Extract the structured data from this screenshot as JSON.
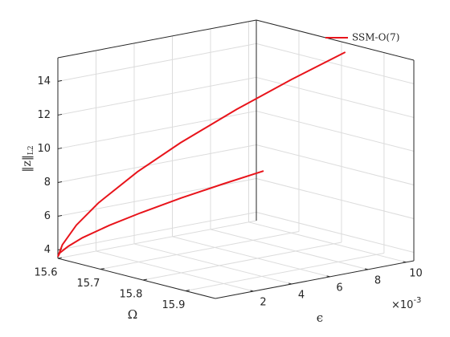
{
  "chart_data": {
    "type": "line3d",
    "xlabel": "Ω",
    "ylabel": "ϵ",
    "zlabel": "‖z‖",
    "zlabel_subscript": "L2",
    "xlim": [
      15.6,
      15.97
    ],
    "ylim": [
      0,
      0.0104
    ],
    "zlim": [
      3.5,
      15.4
    ],
    "xticks": [
      15.6,
      15.7,
      15.8,
      15.9
    ],
    "yticks": [
      {
        "value": 0.002,
        "label": "2"
      },
      {
        "value": 0.004,
        "label": "4"
      },
      {
        "value": 0.006,
        "label": "6"
      },
      {
        "value": 0.008,
        "label": "8"
      },
      {
        "value": 0.01,
        "label": "10"
      }
    ],
    "y_exponent_base": "×10",
    "y_exponent_power": "-3",
    "zticks": [
      4,
      6,
      8,
      10,
      12,
      14
    ],
    "grid": true,
    "legend": "northeast",
    "series": [
      {
        "name": "SSM-O(7)",
        "color": "#e8141b",
        "x": [
          15.827,
          15.79,
          15.751,
          15.709,
          15.675,
          15.642,
          15.621,
          15.606,
          15.6,
          15.6,
          15.602,
          15.604,
          15.609,
          15.614,
          15.621,
          15.628,
          15.635
        ],
        "y": [
          0.01,
          0.008,
          0.006,
          0.004,
          0.0025,
          0.0012,
          0.0005,
          0.0001,
          0,
          0.0001,
          0.0005,
          0.0012,
          0.0025,
          0.004,
          0.006,
          0.008,
          0.01
        ],
        "values": [
          15.04,
          13.61,
          12.02,
          10.2,
          8.58,
          6.81,
          5.5,
          4.32,
          3.6,
          3.8,
          4.12,
          4.49,
          4.98,
          5.42,
          5.93,
          6.36,
          6.76
        ]
      }
    ]
  }
}
